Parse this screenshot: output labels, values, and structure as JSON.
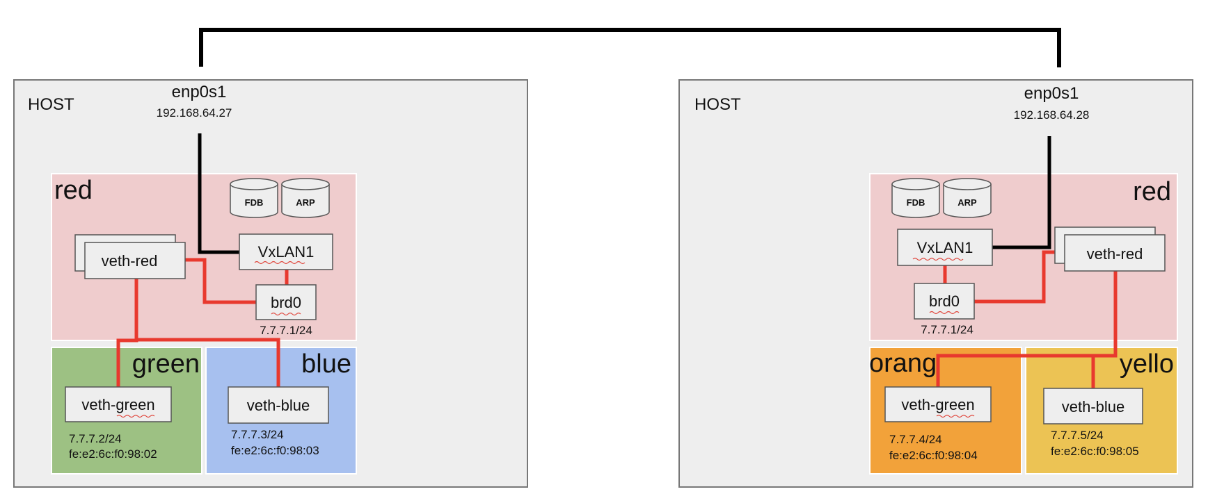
{
  "hosts": [
    {
      "label": "HOST",
      "nic": {
        "name": "enp0s1",
        "ip": "192.168.64.27"
      },
      "namespace": {
        "name": "red",
        "vxlan": "VxLAN1",
        "veth": "veth-red",
        "bridge": "brd0",
        "bridge_ip": "7.7.7.1/24",
        "tables": [
          "FDB",
          "ARP"
        ]
      },
      "subs": [
        {
          "name": "green",
          "color": "#9dc183",
          "veth": "veth-green",
          "ip": "7.7.7.2/24",
          "mac": "fe:e2:6c:f0:98:02"
        },
        {
          "name": "blue",
          "color": "#a7c0ef",
          "veth": "veth-blue",
          "ip": "7.7.7.3/24",
          "mac": "fe:e2:6c:f0:98:03"
        }
      ]
    },
    {
      "label": "HOST",
      "nic": {
        "name": "enp0s1",
        "ip": "192.168.64.28"
      },
      "namespace": {
        "name": "red",
        "vxlan": "VxLAN1",
        "veth": "veth-red",
        "bridge": "brd0",
        "bridge_ip": "7.7.7.1/24",
        "tables": [
          "FDB",
          "ARP"
        ]
      },
      "subs": [
        {
          "name": "orang",
          "color": "#f2a23a",
          "veth": "veth-green",
          "ip": "7.7.7.4/24",
          "mac": "fe:e2:6c:f0:98:04"
        },
        {
          "name": "yello",
          "color": "#ecc354",
          "veth": "veth-blue",
          "ip": "7.7.7.5/24",
          "mac": "fe:e2:6c:f0:98:05"
        }
      ]
    }
  ],
  "colors": {
    "host_bg": "#eeeeee",
    "host_border": "#777777",
    "red_ns": "#efcccd",
    "box_fill": "#eeeeee",
    "red_link": "#e8392e",
    "black_link": "#000000"
  }
}
